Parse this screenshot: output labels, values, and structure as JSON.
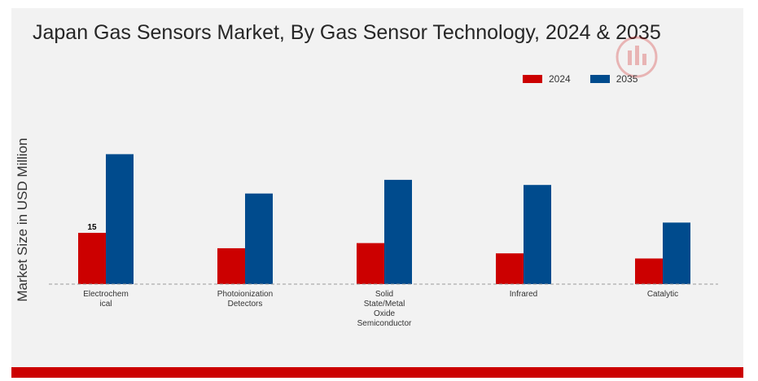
{
  "chart_data": {
    "type": "bar",
    "title": "Japan Gas Sensors Market, By Gas Sensor Technology, 2024 & 2035",
    "xlabel": "",
    "ylabel": "Market Size in USD Million",
    "categories": [
      "Electrochem ical",
      "Photoionization Detectors",
      "Solid State/Metal Oxide Semiconductor",
      "Infrared",
      "Catalytic"
    ],
    "series": [
      {
        "name": "2024",
        "color": "#cc0000",
        "values": [
          15.0,
          10.5,
          12.0,
          9.0,
          7.5
        ]
      },
      {
        "name": "2035",
        "color": "#004b8d",
        "values": [
          38.0,
          26.5,
          30.5,
          29.0,
          18.0
        ]
      }
    ],
    "data_labels": [
      {
        "series": "2024",
        "category_index": 0,
        "text": "15"
      }
    ],
    "ylim": [
      0,
      45
    ],
    "grid": false,
    "legend_position": "top-right"
  },
  "watermark": {
    "icon": "brand-logo-icon"
  }
}
